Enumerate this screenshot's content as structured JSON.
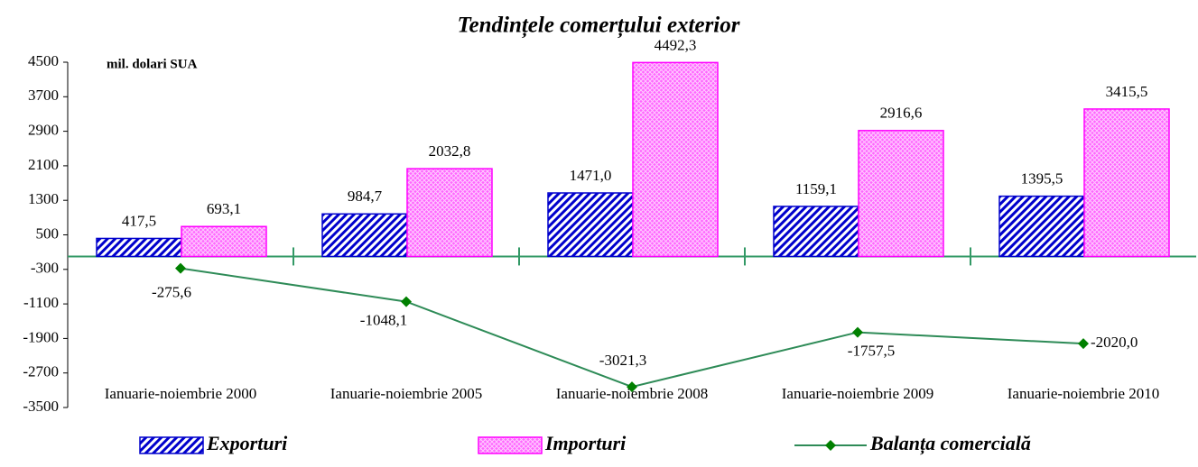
{
  "chart_data": {
    "type": "bar-line",
    "title": "Tendințele comerțului exterior",
    "y_label": "mil. dolari SUA",
    "categories": [
      "Ianuarie-noiembrie 2000",
      "Ianuarie-noiembrie 2005",
      "Ianuarie-noiembrie 2008",
      "Ianuarie-noiembrie 2009",
      "Ianuarie-noiembrie 2010"
    ],
    "series": [
      {
        "name": "Exporturi",
        "type": "bar",
        "color": "#0000cc",
        "values": [
          417.5,
          984.7,
          1471.0,
          1159.1,
          1395.5
        ],
        "value_labels": [
          "417,5",
          "984,7",
          "1471,0",
          "1159,1",
          "1395,5"
        ]
      },
      {
        "name": "Importuri",
        "type": "bar",
        "color": "#ff00ff",
        "values": [
          693.1,
          2032.8,
          4492.3,
          2916.6,
          3415.5
        ],
        "value_labels": [
          "693,1",
          "2032,8",
          "4492,3",
          "2916,6",
          "3415,5"
        ]
      },
      {
        "name": "Balanța comercială",
        "type": "line",
        "color": "#2e8b57",
        "values": [
          -275.6,
          -1048.1,
          -3021.3,
          -1757.5,
          -2020.0
        ],
        "value_labels": [
          "-275,6",
          "-1048,1",
          "-3021,3",
          "-1757,5",
          "-2020,0"
        ]
      }
    ],
    "ylim": [
      -3500,
      4500
    ],
    "yticks": [
      4500,
      3700,
      2900,
      2100,
      1300,
      500,
      -300,
      -1100,
      -1900,
      -2700,
      -3500
    ],
    "legend": "bottom"
  }
}
